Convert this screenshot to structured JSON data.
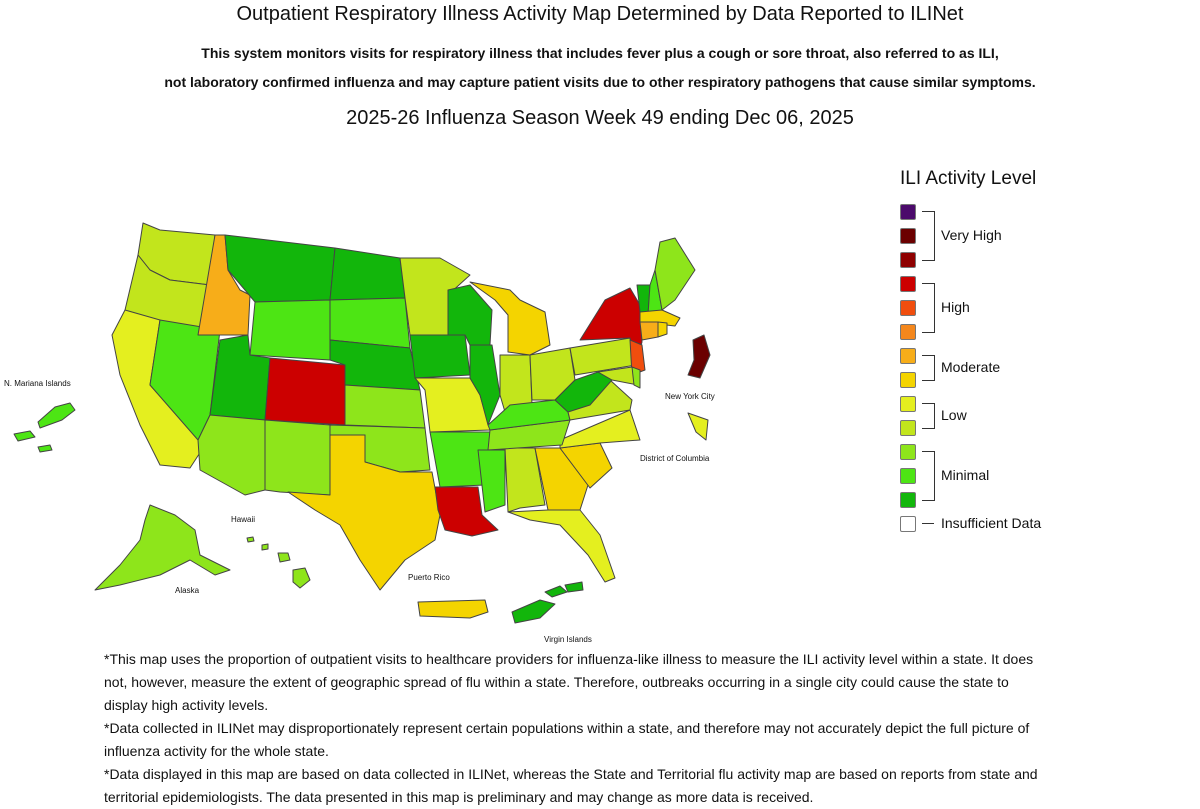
{
  "header": {
    "title": "Outpatient Respiratory Illness Activity Map Determined by Data Reported to ILINet",
    "subtitle_line1": "This system monitors visits for respiratory illness that includes fever plus a cough or sore throat, also referred to as ILI,",
    "subtitle_line2": "not laboratory confirmed influenza and may capture patient visits due to other respiratory pathogens that cause similar symptoms.",
    "season": "2025-26 Influenza Season Week 49 ending Dec 06, 2025"
  },
  "legend": {
    "title": "ILI Activity Level",
    "levels": [
      {
        "name": "Very High",
        "colors": [
          "#4b0a6b",
          "#6b0000",
          "#8f0000"
        ]
      },
      {
        "name": "High",
        "colors": [
          "#cc0000",
          "#f04e0e",
          "#f4871c"
        ]
      },
      {
        "name": "Moderate",
        "colors": [
          "#f7ad19",
          "#f4d400"
        ]
      },
      {
        "name": "Low",
        "colors": [
          "#e4ef1f",
          "#c2e51c"
        ]
      },
      {
        "name": "Minimal",
        "colors": [
          "#8ee51b",
          "#4de514",
          "#12b60b"
        ]
      }
    ],
    "insufficient": {
      "name": "Insufficient Data",
      "color": "#ffffff"
    }
  },
  "territory_labels": {
    "mariana": "N. Mariana Islands",
    "alaska": "Alaska",
    "hawaii": "Hawaii",
    "puerto_rico": "Puerto Rico",
    "virgin_islands": "Virgin Islands",
    "nyc": "New York City",
    "dc": "District of Columbia"
  },
  "notes": [
    "*This map uses the proportion of outpatient visits to healthcare providers for influenza-like illness to measure the ILI activity level within a state. It does not, however, measure the extent of geographic spread of flu within a state. Therefore, outbreaks occurring in a single city could cause the state to display high activity levels.",
    "*Data collected in ILINet may disproportionately represent certain populations within a state, and therefore may not accurately depict the full picture of influenza activity for the whole state.",
    "*Data displayed in this map are based on data collected in ILINet, whereas the State and Territorial flu activity map are based on reports from state and territorial epidemiologists. The data presented in this map is preliminary and may change as more data is received."
  ]
}
